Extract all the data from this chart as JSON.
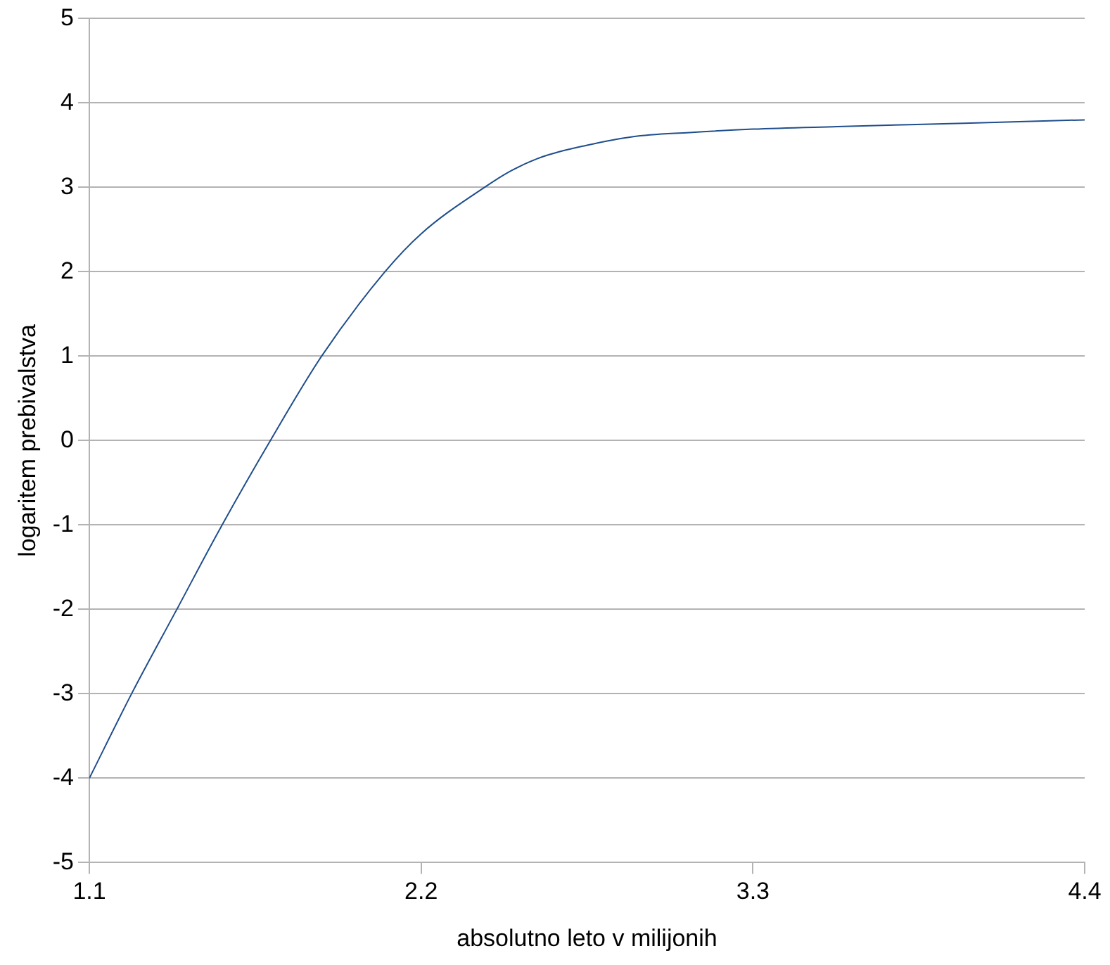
{
  "chart_data": {
    "type": "line",
    "xlabel": "absolutno leto v milijonih",
    "ylabel": "logaritem prebivalstva",
    "x": [
      1.1,
      1.24,
      1.39,
      1.54,
      1.7,
      1.87,
      2.08,
      2.2,
      2.41,
      2.5,
      2.6,
      2.75,
      2.9,
      3.09,
      3.3,
      3.58,
      4.0,
      4.4
    ],
    "series": [
      {
        "color": "#1f4e8c",
        "values": [
          -4,
          -3,
          -2,
          -1,
          0,
          1,
          2,
          2.45,
          3,
          3.2,
          3.36,
          3.5,
          3.6,
          3.65,
          3.69,
          3.72,
          3.76,
          3.8
        ]
      }
    ],
    "xlim": [
      1.1,
      4.4
    ],
    "xticks": [
      1.1,
      2.2,
      3.3,
      4.4
    ],
    "ylim": [
      -5,
      5
    ],
    "yticks": [
      -5,
      -4,
      -3,
      -2,
      -1,
      0,
      1,
      2,
      3,
      4,
      5
    ],
    "grid": "y",
    "legend": false,
    "marker": "none",
    "line_style": "solid"
  }
}
